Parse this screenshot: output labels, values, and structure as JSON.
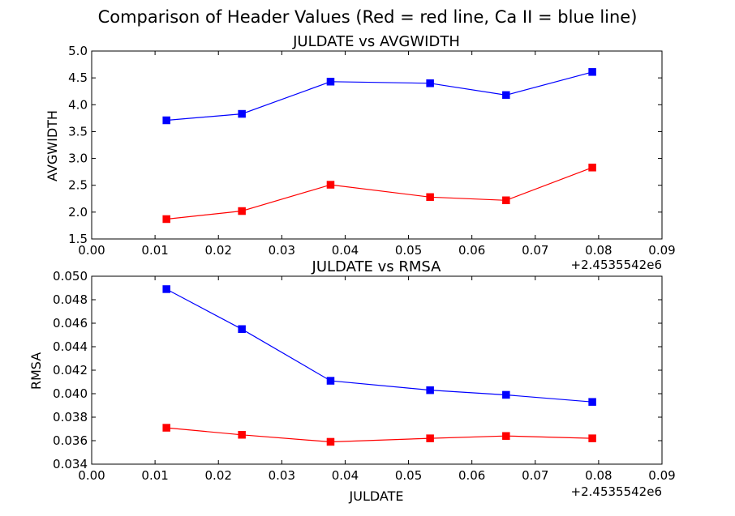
{
  "figure": {
    "suptitle": "Comparison of Header Values (Red = red line, Ca II = blue line)"
  },
  "chart_data": [
    {
      "type": "line",
      "title": "JULDATE vs AVGWIDTH",
      "xlabel": "",
      "ylabel": "AVGWIDTH",
      "x_offset_label": "+2.4535542e6",
      "xlim": [
        0.0,
        0.09
      ],
      "ylim": [
        1.5,
        5.0
      ],
      "x_ticks": [
        "0.00",
        "0.01",
        "0.02",
        "0.03",
        "0.04",
        "0.05",
        "0.06",
        "0.07",
        "0.08",
        "0.09"
      ],
      "y_ticks": [
        "1.5",
        "2.0",
        "2.5",
        "3.0",
        "3.5",
        "4.0",
        "4.5",
        "5.0"
      ],
      "x": [
        0.0118,
        0.0237,
        0.0377,
        0.0534,
        0.0654,
        0.079
      ],
      "series": [
        {
          "color": "#0000ff",
          "values": [
            3.71,
            3.83,
            4.43,
            4.4,
            4.18,
            4.61
          ]
        },
        {
          "color": "#ff0000",
          "values": [
            1.87,
            2.02,
            2.51,
            2.28,
            2.22,
            2.83
          ]
        }
      ],
      "grid": false,
      "marker": "square"
    },
    {
      "type": "line",
      "title": "JULDATE vs RMSA",
      "xlabel": "JULDATE",
      "ylabel": "RMSA",
      "x_offset_label": "+2.4535542e6",
      "xlim": [
        0.0,
        0.09
      ],
      "ylim": [
        0.034,
        0.05
      ],
      "x_ticks": [
        "0.00",
        "0.01",
        "0.02",
        "0.03",
        "0.04",
        "0.05",
        "0.06",
        "0.07",
        "0.08",
        "0.09"
      ],
      "y_ticks": [
        "0.034",
        "0.036",
        "0.038",
        "0.040",
        "0.042",
        "0.044",
        "0.046",
        "0.048",
        "0.050"
      ],
      "x": [
        0.0118,
        0.0237,
        0.0377,
        0.0534,
        0.0654,
        0.079
      ],
      "series": [
        {
          "color": "#0000ff",
          "values": [
            0.0489,
            0.0455,
            0.0411,
            0.0403,
            0.0399,
            0.0393
          ]
        },
        {
          "color": "#ff0000",
          "values": [
            0.0371,
            0.0365,
            0.0359,
            0.0362,
            0.0364,
            0.0362
          ]
        }
      ],
      "grid": false,
      "marker": "square"
    }
  ]
}
